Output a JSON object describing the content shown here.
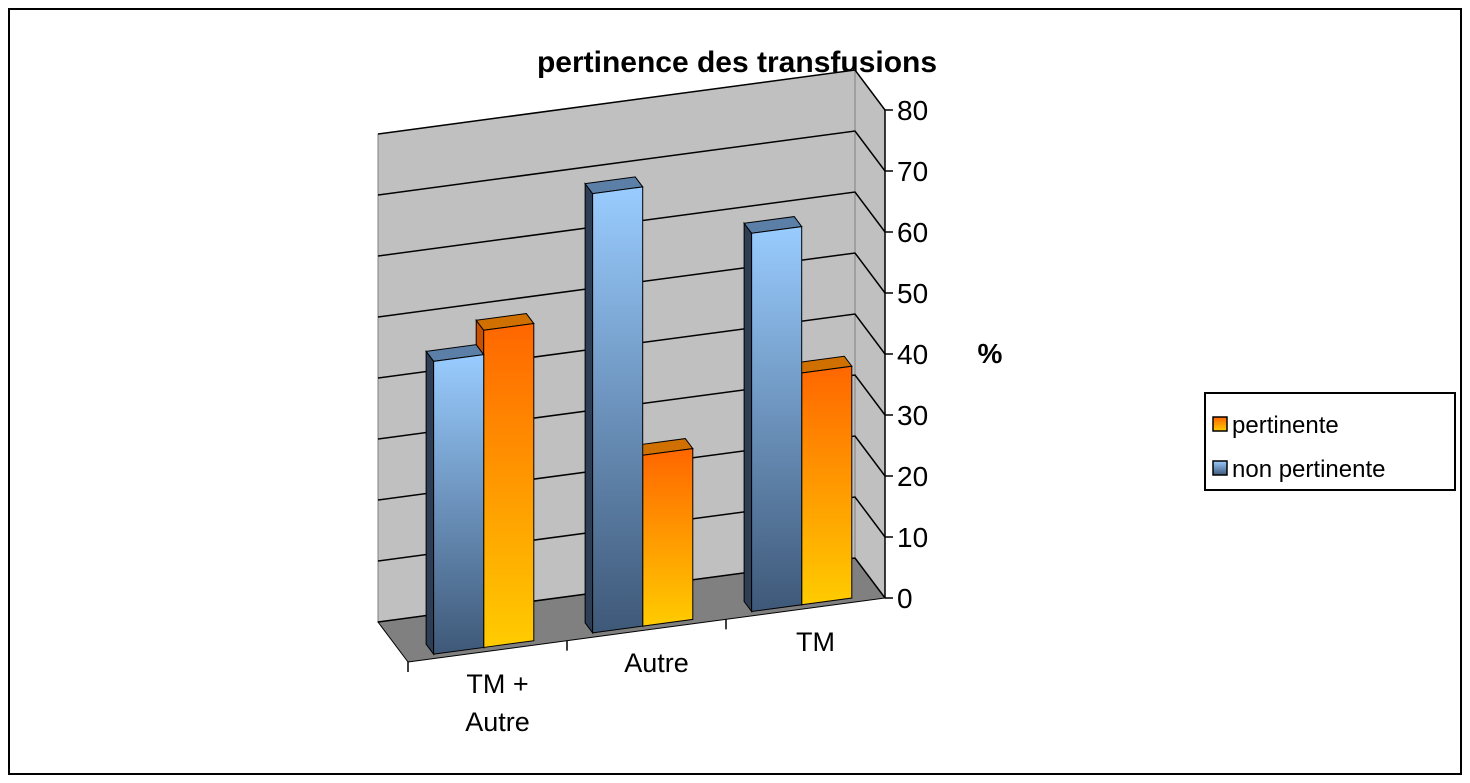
{
  "chart_data": {
    "type": "bar3d",
    "title": "pertinence des transfusions",
    "ylabel": "%",
    "categories": [
      "TM + Autre",
      "Autre",
      "TM"
    ],
    "series": [
      {
        "name": "pertinente",
        "color": "#ff8000",
        "values": [
          52,
          28,
          38
        ]
      },
      {
        "name": "non pertinente",
        "color": "#99ccff",
        "values": [
          48,
          72,
          62
        ]
      }
    ],
    "ylim": [
      0,
      80
    ],
    "yticks": [
      0,
      10,
      20,
      30,
      40,
      50,
      60,
      70,
      80
    ],
    "grid": true,
    "legend": "right"
  }
}
